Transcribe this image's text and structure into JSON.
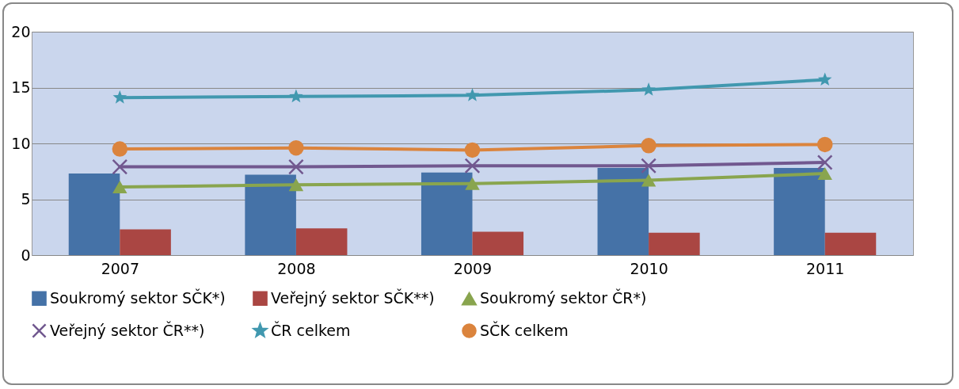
{
  "chart_data": {
    "type": "bar",
    "categories": [
      "2007",
      "2008",
      "2009",
      "2010",
      "2011"
    ],
    "ylim": [
      0,
      20
    ],
    "yticks": [
      0,
      5,
      10,
      15,
      20
    ],
    "grid": "y",
    "legend": "bottom",
    "series": [
      {
        "name": "Soukromý sektor SČK*)",
        "color": "#4572a7",
        "values": [
          7.3,
          7.2,
          7.4,
          7.8,
          7.8
        ]
      },
      {
        "name": "Veřejný sektor SČK**)",
        "color": "#aa4643",
        "values": [
          2.3,
          2.4,
          2.1,
          2.0,
          2.0
        ]
      },
      {
        "name": "Soukromý sektor ČR*)",
        "color": "#89a54e",
        "type": "line",
        "marker": "triangle",
        "values": [
          6.1,
          6.3,
          6.4,
          6.7,
          7.3
        ]
      },
      {
        "name": "Veřejný sektor ČR**)",
        "color": "#71588f",
        "type": "line",
        "marker": "cross",
        "values": [
          7.9,
          7.9,
          8.0,
          8.0,
          8.3
        ]
      },
      {
        "name": "ČR celkem",
        "color": "#4198af",
        "type": "line",
        "marker": "star",
        "values": [
          14.1,
          14.2,
          14.3,
          14.8,
          15.7
        ]
      },
      {
        "name": "SČK celkem",
        "color": "#db843d",
        "type": "line",
        "marker": "circle",
        "values": [
          9.5,
          9.6,
          9.4,
          9.8,
          9.9
        ]
      }
    ]
  }
}
